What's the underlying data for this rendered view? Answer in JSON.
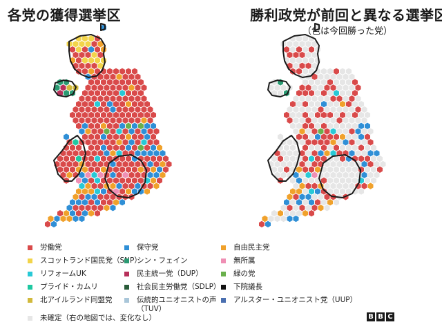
{
  "titles": {
    "left": "各党の獲得選挙区",
    "right": "勝利政党が前回と異なる選挙区",
    "right_sub": "（色は今回勝った党）"
  },
  "colors": {
    "labour": "#d94a4a",
    "conservative": "#2f8fd6",
    "libdem": "#f0a12b",
    "snp": "#f2d44a",
    "sinn_fein": "#2a9a72",
    "independent": "#ef8fb4",
    "reform": "#28c9d6",
    "dup": "#b7305a",
    "green": "#6ab04c",
    "plaid": "#1ec8a1",
    "sdlp": "#2a5c3a",
    "speaker": "#111111",
    "alliance": "#d1b93c",
    "tuv": "#a9c6d9",
    "uup": "#4a6fb0",
    "undeclared": "#e6e6e6",
    "border": "#1a1a1a"
  },
  "legend": [
    {
      "label": "労働党",
      "color": "#d94a4a"
    },
    {
      "label": "保守党",
      "color": "#2f8fd6"
    },
    {
      "label": "自由民主党",
      "color": "#f0a12b"
    },
    {
      "label": "スコットランド国民党（SNP）",
      "color": "#f2d44a"
    },
    {
      "label": "シン・フェイン",
      "color": "#2a9a72"
    },
    {
      "label": "無所属",
      "color": "#ef8fb4"
    },
    {
      "label": "リフォームUK",
      "color": "#28c9d6"
    },
    {
      "label": "民主統一党（DUP）",
      "color": "#b7305a"
    },
    {
      "label": "緑の党",
      "color": "#6ab04c"
    },
    {
      "label": "プライド・カムリ",
      "color": "#1ec8a1"
    },
    {
      "label": "社会民主労働党（SDLP）",
      "color": "#2a5c3a"
    },
    {
      "label": "下院議長",
      "color": "#111111"
    },
    {
      "label": "北アイルランド同盟党",
      "color": "#d1b93c"
    },
    {
      "label": "伝統的ユニオニストの声（TUV）",
      "color": "#a9c6d9"
    },
    {
      "label": "アルスター・ユニオニスト党（UUP）",
      "color": "#4a6fb0"
    },
    {
      "label": "未確定（右の地図では、変化なし）",
      "color": "#e6e6e6"
    }
  ],
  "chart_data": [
    {
      "type": "hex map",
      "title": "各党の獲得選挙区",
      "description_parties": [
        "労働党",
        "保守党",
        "自由民主党",
        "スコットランド国民党（SNP）",
        "シン・フェイン",
        "無所属",
        "リフォームUK",
        "民主統一党（DUP）",
        "緑の党",
        "プライド・カムリ",
        "社会民主労働党（SDLP）",
        "下院議長",
        "北アイルランド同盟党",
        "伝統的ユニオニストの声（TUV）",
        "アルスター・ユニオニスト党（UUP）",
        "未確定（右の地図では、変化なし）"
      ]
    },
    {
      "type": "hex map",
      "title": "勝利政党が前回と異なる選挙区",
      "subtitle": "（色は今回勝った党）"
    }
  ],
  "logo": {
    "letters": [
      "B",
      "B",
      "C"
    ]
  }
}
